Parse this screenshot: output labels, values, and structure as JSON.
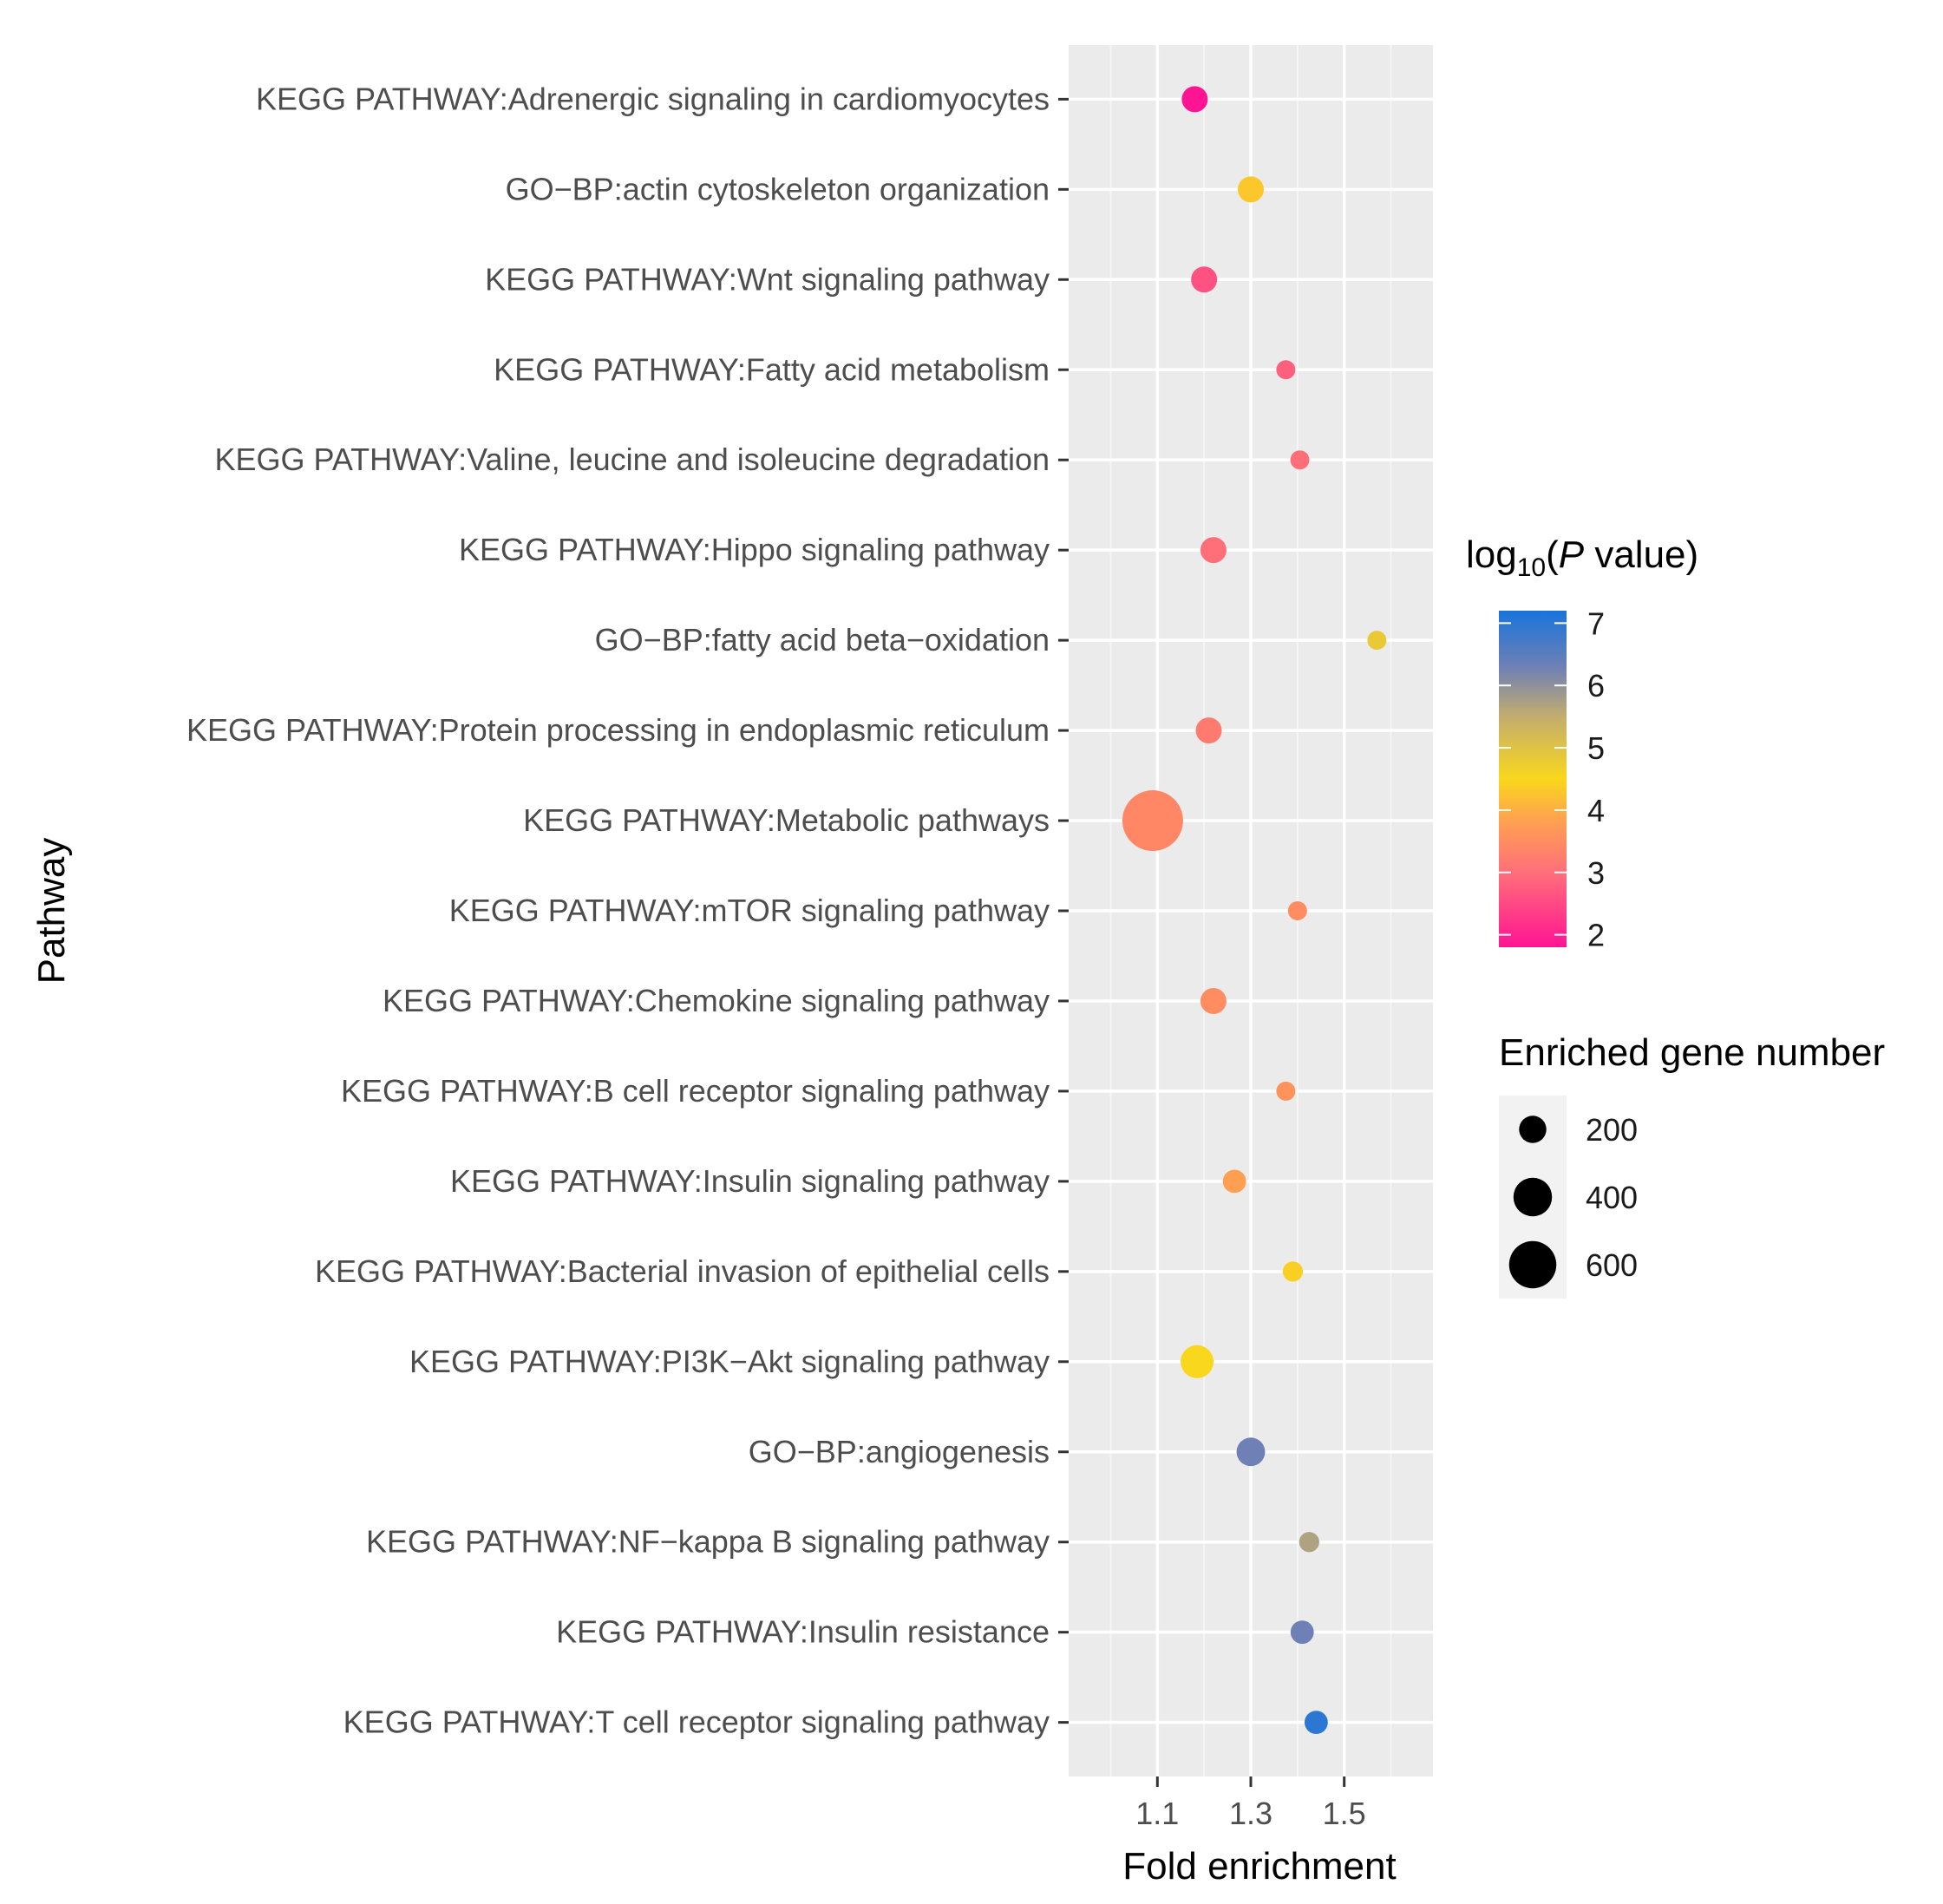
{
  "chart_data": {
    "type": "scatter",
    "xlabel": "Fold enrichment",
    "ylabel": "Pathway",
    "xlim": [
      0.91,
      1.69
    ],
    "x_ticks": [
      "1.1",
      "1.3",
      "1.5"
    ],
    "x_tick_values": [
      1.1,
      1.3,
      1.5
    ],
    "grid": true,
    "color_legend": {
      "title_prefix": "log",
      "title_sub": "10",
      "title_open": "(",
      "title_p": "P",
      "title_rest": " value)",
      "range": [
        1.8,
        7.2
      ],
      "ticks": [
        {
          "value": 7,
          "label": "7"
        },
        {
          "value": 6,
          "label": "6"
        },
        {
          "value": 5,
          "label": "5"
        },
        {
          "value": 4,
          "label": "4"
        },
        {
          "value": 3,
          "label": "3"
        },
        {
          "value": 2,
          "label": "2"
        }
      ],
      "stops": [
        {
          "value": 1.8,
          "color": "#ff1493"
        },
        {
          "value": 3.0,
          "color": "#ff6f7a"
        },
        {
          "value": 3.8,
          "color": "#ff9f52"
        },
        {
          "value": 4.5,
          "color": "#f9d71c"
        },
        {
          "value": 5.5,
          "color": "#c3ad6e"
        },
        {
          "value": 6.3,
          "color": "#6e80b5"
        },
        {
          "value": 7.2,
          "color": "#1874dc"
        }
      ]
    },
    "size_legend": {
      "title": "Enriched gene number",
      "entries": [
        {
          "value": 200,
          "label": "200"
        },
        {
          "value": 400,
          "label": "400"
        },
        {
          "value": 600,
          "label": "600"
        }
      ]
    },
    "points": [
      {
        "pathway": "KEGG PATHWAY:Adrenergic signaling in cardiomyocytes",
        "fold": 1.18,
        "log10p": 1.8,
        "genes": 125
      },
      {
        "pathway": "GO−BP:actin cytoskeleton organization",
        "fold": 1.3,
        "log10p": 4.3,
        "genes": 125
      },
      {
        "pathway": "KEGG PATHWAY:Wnt signaling pathway",
        "fold": 1.2,
        "log10p": 2.6,
        "genes": 125
      },
      {
        "pathway": "KEGG PATHWAY:Fatty acid metabolism",
        "fold": 1.375,
        "log10p": 2.8,
        "genes": 50
      },
      {
        "pathway": "KEGG PATHWAY:Valine, leucine and isoleucine degradation",
        "fold": 1.405,
        "log10p": 3.0,
        "genes": 50
      },
      {
        "pathway": "KEGG PATHWAY:Hippo signaling pathway",
        "fold": 1.22,
        "log10p": 3.0,
        "genes": 125
      },
      {
        "pathway": "GO−BP:fatty acid beta−oxidation",
        "fold": 1.57,
        "log10p": 4.8,
        "genes": 50
      },
      {
        "pathway": "KEGG PATHWAY:Protein processing in endoplasmic reticulum",
        "fold": 1.21,
        "log10p": 3.2,
        "genes": 125
      },
      {
        "pathway": "KEGG PATHWAY:Metabolic pathways",
        "fold": 1.09,
        "log10p": 3.4,
        "genes": 680
      },
      {
        "pathway": "KEGG PATHWAY:mTOR signaling pathway",
        "fold": 1.4,
        "log10p": 3.5,
        "genes": 50
      },
      {
        "pathway": "KEGG PATHWAY:Chemokine signaling pathway",
        "fold": 1.22,
        "log10p": 3.5,
        "genes": 125
      },
      {
        "pathway": "KEGG PATHWAY:B cell receptor signaling pathway",
        "fold": 1.375,
        "log10p": 3.6,
        "genes": 50
      },
      {
        "pathway": "KEGG PATHWAY:Insulin signaling pathway",
        "fold": 1.265,
        "log10p": 3.8,
        "genes": 100
      },
      {
        "pathway": "KEGG PATHWAY:Bacterial invasion of epithelial cells",
        "fold": 1.39,
        "log10p": 4.4,
        "genes": 75
      },
      {
        "pathway": "KEGG PATHWAY:PI3K−Akt signaling pathway",
        "fold": 1.185,
        "log10p": 4.5,
        "genes": 200
      },
      {
        "pathway": "GO−BP:angiogenesis",
        "fold": 1.3,
        "log10p": 6.3,
        "genes": 150
      },
      {
        "pathway": "KEGG PATHWAY:NF−kappa B signaling pathway",
        "fold": 1.425,
        "log10p": 5.7,
        "genes": 75
      },
      {
        "pathway": "KEGG PATHWAY:Insulin resistance",
        "fold": 1.41,
        "log10p": 6.3,
        "genes": 100
      },
      {
        "pathway": "KEGG PATHWAY:T cell receptor signaling pathway",
        "fold": 1.44,
        "log10p": 7.0,
        "genes": 100
      }
    ]
  }
}
